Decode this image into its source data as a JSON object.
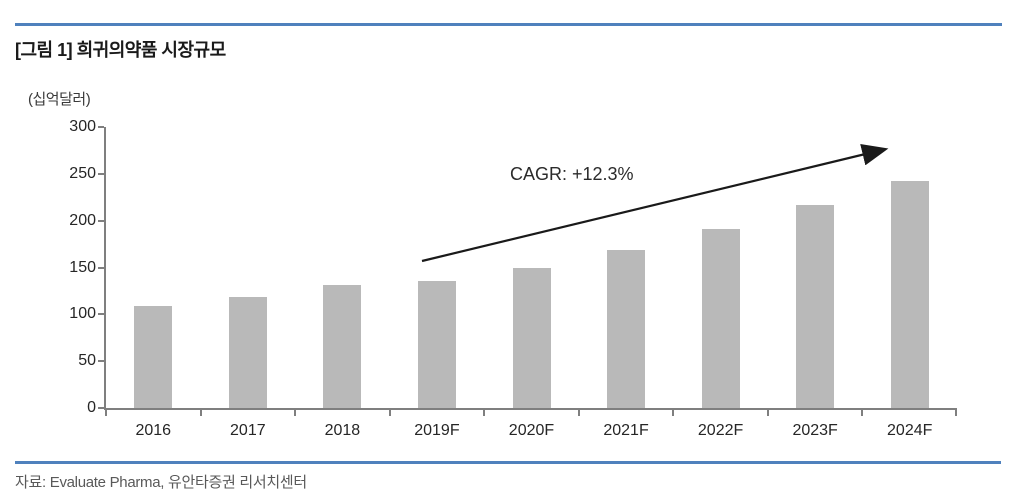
{
  "page": {
    "source": "자료: Evaluate Pharma, 유안타증권 리서치센터"
  },
  "colors": {
    "rule_blue": "#4f81bd",
    "bar_gray": "#b9b9b9",
    "axis_gray": "#7f7f7f",
    "arrow_black": "#1a1a1a"
  },
  "chart_data": {
    "type": "bar",
    "title": "[그림 1] 희귀의약품 시장규모",
    "unit_label": "(십억달러)",
    "categories": [
      "2016",
      "2017",
      "2018",
      "2019F",
      "2020F",
      "2021F",
      "2022F",
      "2023F",
      "2024F"
    ],
    "values": [
      109,
      118,
      131,
      136,
      149,
      169,
      191,
      217,
      242
    ],
    "ylim": [
      0,
      300
    ],
    "yticks": [
      0,
      50,
      100,
      150,
      200,
      250,
      300
    ],
    "xlabel": "",
    "ylabel": "(십억달러)",
    "grid": false,
    "legend": "none",
    "annotation": "CAGR: +12.3%"
  }
}
